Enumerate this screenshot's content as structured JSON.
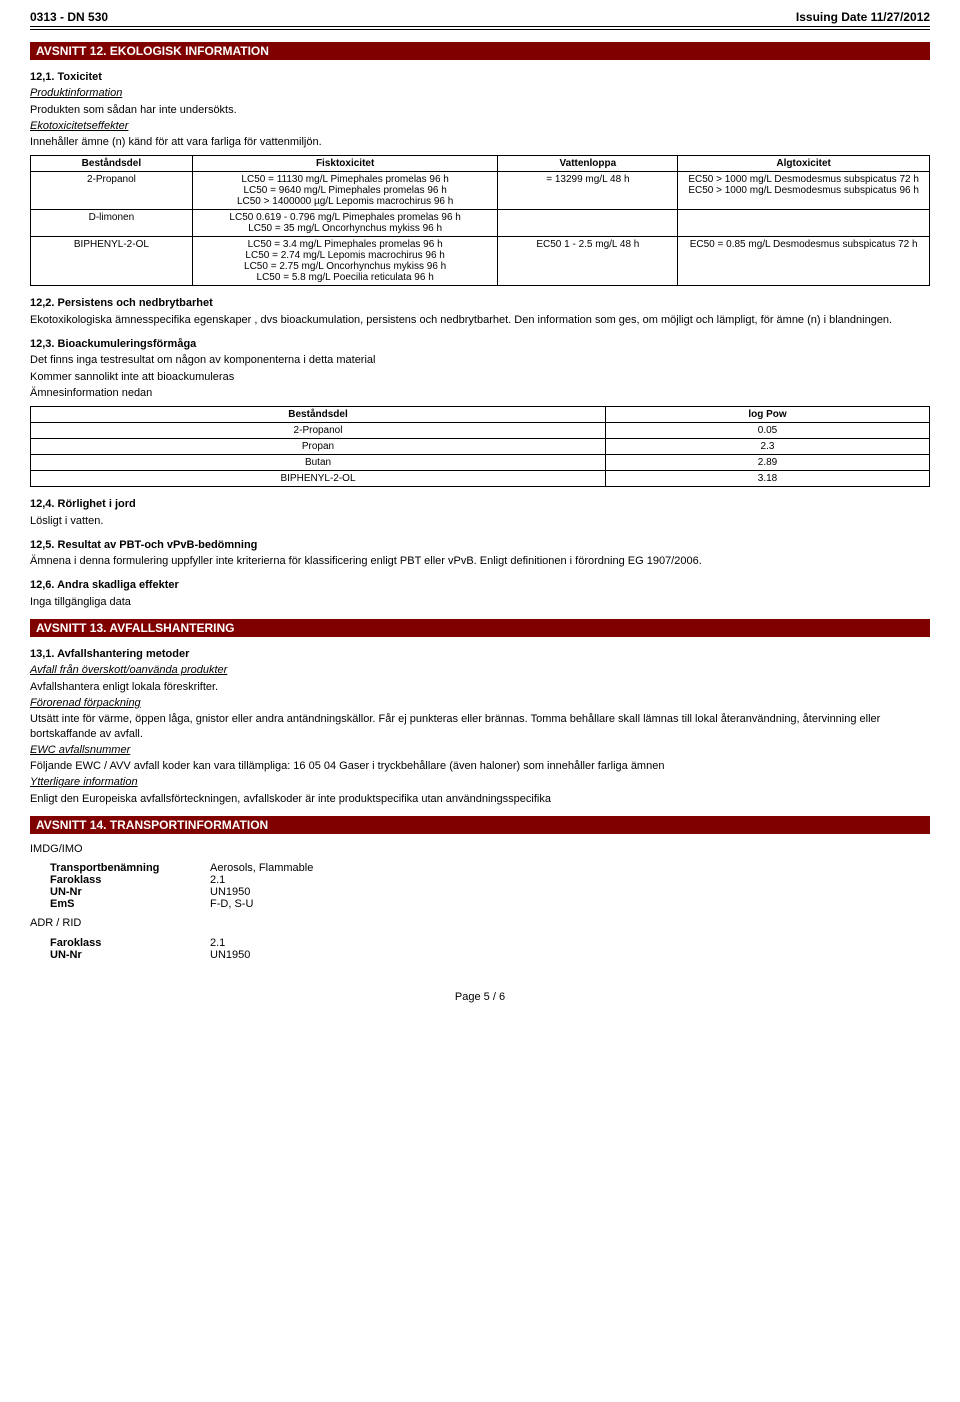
{
  "header": {
    "left": "0313 - DN 530",
    "right": "Issuing Date 11/27/2012"
  },
  "sections": {
    "s12": {
      "title": "AVSNITT 12. EKOLOGISK INFORMATION",
      "h1": "12,1. Toxicitet",
      "prodinfo_label": "Produktinformation",
      "prodinfo_text": "Produkten som sådan har inte undersökts.",
      "ecotox_label": "Ekotoxicitetseffekter",
      "ecotox_text": "Innehåller ämne (n) känd för att vara farliga för vattenmiljön.",
      "tox_table": {
        "columns": [
          "Beståndsdel",
          "Fisktoxicitet",
          "Vattenloppa",
          "Algtoxicitet"
        ],
        "col_widths": [
          "18%",
          "34%",
          "20%",
          "28%"
        ],
        "rows": [
          {
            "name": "2-Propanol",
            "fish": "LC50 = 11130 mg/L Pimephales promelas 96 h\nLC50 = 9640 mg/L Pimephales promelas 96 h\nLC50 > 1400000 µg/L Lepomis macrochirus 96 h",
            "flea": "= 13299 mg/L 48 h",
            "algae": "EC50 > 1000 mg/L Desmodesmus subspicatus 72 h\nEC50 > 1000 mg/L Desmodesmus subspicatus 96 h"
          },
          {
            "name": "D-limonen",
            "fish": "LC50 0.619 - 0.796 mg/L Pimephales promelas 96 h\nLC50 = 35 mg/L Oncorhynchus mykiss 96 h",
            "flea": "",
            "algae": ""
          },
          {
            "name": "BIPHENYL-2-OL",
            "fish": "LC50 = 3.4 mg/L Pimephales promelas 96 h\nLC50 = 2.74 mg/L Lepomis macrochirus 96 h\nLC50 = 2.75 mg/L Oncorhynchus mykiss 96 h\nLC50 = 5.8 mg/L Poecilia reticulata 96 h",
            "flea": "EC50 1 - 2.5 mg/L 48 h",
            "algae": "EC50 = 0.85 mg/L Desmodesmus subspicatus 72 h"
          }
        ]
      },
      "h2": "12,2. Persistens och nedbrytbarhet",
      "h2_text": "Ekotoxikologiska ämnesspecifika egenskaper , dvs bioackumulation, persistens och nedbrytbarhet. Den information som ges, om möjligt och lämpligt, för ämne (n) i blandningen.",
      "h3": "12,3. Bioackumuleringsförmåga",
      "h3_text1": "Det finns inga testresultat om någon av komponenterna i detta material",
      "h3_text2": "Kommer sannolikt inte att bioackumuleras",
      "h3_text3": "Ämnesinformation nedan",
      "logpow_table": {
        "columns": [
          "Beståndsdel",
          "log Pow"
        ],
        "rows": [
          [
            "2-Propanol",
            "0.05"
          ],
          [
            "Propan",
            "2.3"
          ],
          [
            "Butan",
            "2.89"
          ],
          [
            "BIPHENYL-2-OL",
            "3.18"
          ]
        ]
      },
      "h4": "12,4. Rörlighet i jord",
      "h4_text": "Lösligt i vatten.",
      "h5": "12,5. Resultat av PBT-och vPvB-bedömning",
      "h5_text": "Ämnena i denna formulering uppfyller inte kriterierna för klassificering enligt PBT eller vPvB. Enligt definitionen i förordning EG 1907/2006.",
      "h6": "12,6. Andra skadliga effekter",
      "h6_text": "Inga tillgängliga data"
    },
    "s13": {
      "title": "AVSNITT 13. AVFALLSHANTERING",
      "h1": "13,1. Avfallshantering metoder",
      "sub1_label": "Avfall från överskott/oanvända produkter",
      "sub1_text": "Avfallshantera enligt lokala föreskrifter.",
      "sub2_label": "Förorenad förpackning",
      "sub2_text": "Utsätt inte för värme, öppen låga, gnistor eller andra antändningskällor. Får ej punkteras eller brännas. Tomma behållare skall lämnas till lokal återanvändning, återvinning eller bortskaffande av avfall.",
      "sub3_label": "EWC avfallsnummer",
      "sub3_text": "Följande EWC / AVV avfall koder kan vara tillämpliga: 16 05 04 Gaser i tryckbehållare (även haloner) som innehåller farliga ämnen",
      "sub4_label": "Ytterligare information",
      "sub4_text": "Enligt den Europeiska avfallsförteckningen, avfallskoder är inte produktspecifika utan användningsspecifika"
    },
    "s14": {
      "title": "AVSNITT 14. TRANSPORTINFORMATION",
      "group1": "IMDG/IMO",
      "rows1": [
        [
          "Transportbenämning",
          "Aerosols, Flammable"
        ],
        [
          "Faroklass",
          "2.1"
        ],
        [
          "UN-Nr",
          "UN1950"
        ],
        [
          "EmS",
          "F-D, S-U"
        ]
      ],
      "group2": "ADR / RID",
      "rows2": [
        [
          "Faroklass",
          "2.1"
        ],
        [
          "UN-Nr",
          "UN1950"
        ]
      ]
    }
  },
  "footer": "Page 5 / 6"
}
